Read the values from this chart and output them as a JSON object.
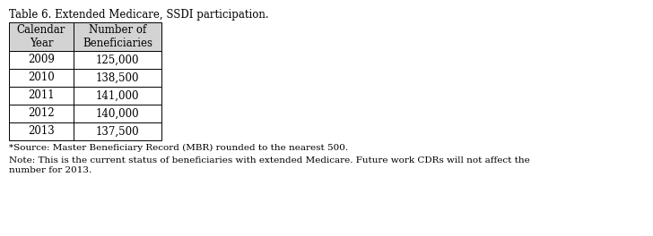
{
  "title": "Table 6. Extended Medicare, SSDI participation.",
  "col1_header": "Calendar\nYear",
  "col2_header": "Number of\nBeneficiaries",
  "rows": [
    [
      "2009",
      "125,000"
    ],
    [
      "2010",
      "138,500"
    ],
    [
      "2011",
      "141,000"
    ],
    [
      "2012",
      "140,000"
    ],
    [
      "2013",
      "137,500"
    ]
  ],
  "footnote1": "*Source: Master Beneficiary Record (MBR) rounded to the nearest 500.",
  "footnote2": "Note: This is the current status of beneficiaries with extended Medicare. Future work CDRs will not affect the\nnumber for 2013.",
  "bg_color": "#ffffff",
  "table_border_color": "#000000",
  "header_bg": "#d3d3d3",
  "cell_bg": "#ffffff",
  "font_size_title": 8.5,
  "font_size_table": 8.5,
  "font_size_footnote": 7.5,
  "fig_width": 7.28,
  "fig_height": 2.64,
  "font_family": "serif"
}
